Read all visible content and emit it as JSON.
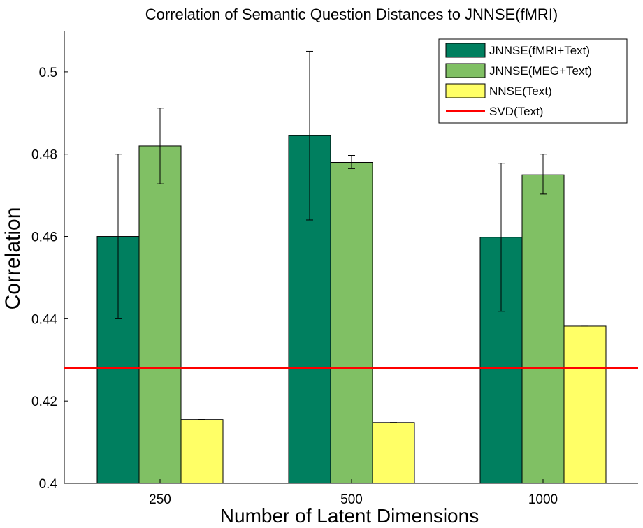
{
  "chart_data": {
    "type": "bar",
    "title": "Correlation of Semantic Question Distances to JNNSE(fMRI)",
    "xlabel": "Number of Latent Dimensions",
    "ylabel": "Correlation",
    "categories": [
      "250",
      "500",
      "1000"
    ],
    "ylim": [
      0.4,
      0.51
    ],
    "yticks": [
      0.4,
      0.42,
      0.44,
      0.46,
      0.48,
      0.5
    ],
    "ytick_labels": [
      "0.4",
      "0.42",
      "0.44",
      "0.46",
      "0.48",
      "0.5"
    ],
    "series": [
      {
        "name": "JNNSE(fMRI+Text)",
        "color": "#007f5f",
        "values": [
          0.46,
          0.4845,
          0.4598
        ],
        "error_low": [
          0.44,
          0.464,
          0.4418
        ],
        "error_high": [
          0.48,
          0.505,
          0.4778
        ]
      },
      {
        "name": "JNNSE(MEG+Text)",
        "color": "#80c064",
        "values": [
          0.482,
          0.478,
          0.475
        ],
        "error_low": [
          0.4728,
          0.4765,
          0.4703
        ],
        "error_high": [
          0.4912,
          0.4797,
          0.48
        ]
      },
      {
        "name": "NNSE(Text)",
        "color": "#ffff66",
        "values": [
          0.4155,
          0.4148,
          0.4382
        ],
        "error_low": [
          0.4155,
          0.4148,
          0.4382
        ],
        "error_high": [
          0.4155,
          0.4148,
          0.4382
        ]
      }
    ],
    "reference_lines": [
      {
        "name": "SVD(Text)",
        "value": 0.428,
        "color": "#ff0000"
      }
    ],
    "legend": {
      "position": "top-right"
    },
    "grid": false
  }
}
